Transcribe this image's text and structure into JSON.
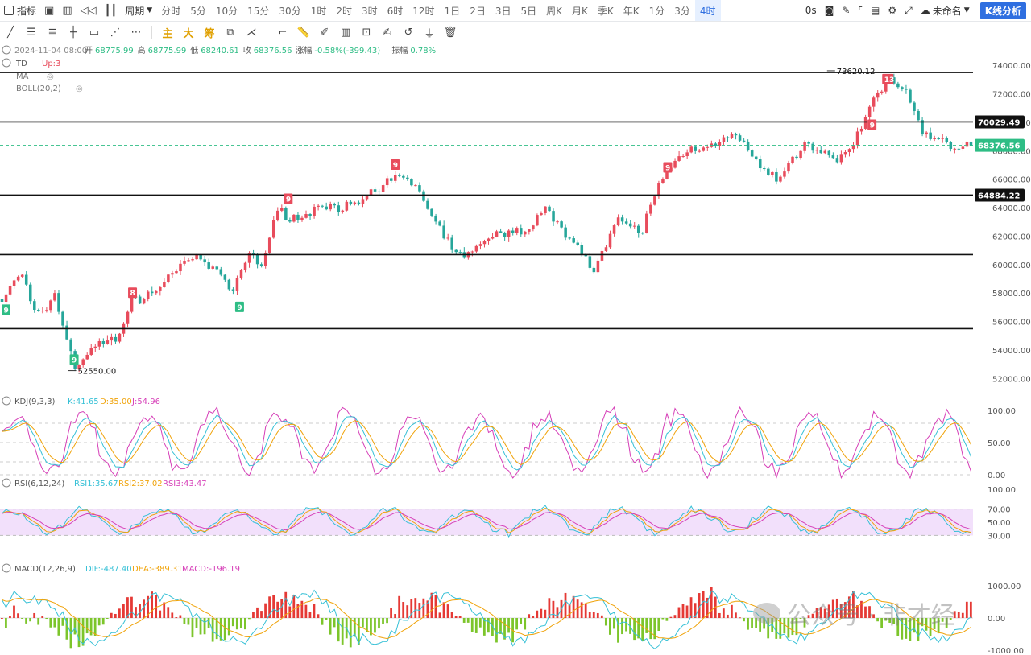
{
  "toolbar": {
    "indicator_label": "指标",
    "period_label": "周期",
    "periods": [
      "分时",
      "5分",
      "10分",
      "15分",
      "30分",
      "1时",
      "2时",
      "3时",
      "6时",
      "12时",
      "1日",
      "2日",
      "3日",
      "5日",
      "周K",
      "月K",
      "季K",
      "年K",
      "1分",
      "3分",
      "4时"
    ],
    "active_period": "4时",
    "countdown": "0s",
    "layout_name": "未命名",
    "kline_button": "K线分析"
  },
  "drawing_tools": {
    "main_label": "主",
    "big_label": "大",
    "chip_label": "筹"
  },
  "ohlc": {
    "datetime": "2024-11-04 08:00",
    "open_label": "开",
    "open": "68775.99",
    "high_label": "高",
    "high": "68775.99",
    "low_label": "低",
    "low": "68240.61",
    "close_label": "收",
    "close": "68376.56",
    "change_label": "涨幅",
    "change": "-0.58%(-399.43)",
    "amp_label": "振幅",
    "amp": "0.78%"
  },
  "overlays": {
    "td_label": "TD",
    "td_value": "Up:3",
    "ma_label": "MA",
    "boll_label": "BOLL(20,2)"
  },
  "kdj": {
    "label": "KDJ(9,3,3)",
    "k": "K:41.65",
    "d": "D:35.00",
    "j": "J:54.96"
  },
  "rsi": {
    "label": "RSI(6,12,24)",
    "r1": "RSI1:35.67",
    "r2": "RSI2:37.02",
    "r3": "RSI3:43.47"
  },
  "macd": {
    "label": "MACD(12,26,9)",
    "dif": "DIF:-487.40",
    "dea": "DEA:-389.31",
    "macd": "MACD:-196.19"
  },
  "watermark": "公众号 · 非才经",
  "colors": {
    "up": "#e84c5c",
    "down": "#26a69a",
    "td_green": "#2ebd85",
    "td_red": "#e84c5c",
    "k_line": "#35c0d6",
    "d_line": "#f0a30a",
    "j_line": "#d63fb8",
    "macd_up": "#e53935",
    "macd_down": "#7cc52b",
    "rsi_band": "#f2e0fb"
  },
  "chart_data": [
    {
      "type": "candlestick",
      "title": "",
      "ylim": [
        51000,
        75200
      ],
      "y_ticks": [
        52000,
        54000,
        56000,
        58000,
        60000,
        62000,
        64000,
        66000,
        68000,
        70000,
        72000,
        74000
      ],
      "horizontal_lines": [
        73500,
        70029.49,
        64884.22,
        60700,
        55500
      ],
      "price_labels": [
        "70029.49",
        "68376.56",
        "64884.22"
      ],
      "last_price": 68376.56,
      "annotations": [
        {
          "text": "73620.12",
          "x": 0.85,
          "y": 73620
        },
        {
          "text": "52550.00",
          "x": 0.07,
          "y": 52550
        }
      ],
      "td_markers": [
        {
          "text": "9",
          "kind": "down",
          "x": 0.0,
          "y": 56800
        },
        {
          "text": "9",
          "kind": "down",
          "x": 0.07,
          "y": 53300
        },
        {
          "text": "8",
          "kind": "up",
          "x": 0.13,
          "y": 58000
        },
        {
          "text": "9",
          "kind": "down",
          "x": 0.24,
          "y": 57000
        },
        {
          "text": "9",
          "kind": "up",
          "x": 0.29,
          "y": 64600
        },
        {
          "text": "9",
          "kind": "up",
          "x": 0.4,
          "y": 67000
        },
        {
          "text": "9",
          "kind": "up",
          "x": 0.68,
          "y": 66800
        },
        {
          "text": "9",
          "kind": "up",
          "x": 0.89,
          "y": 69800
        },
        {
          "text": "13",
          "kind": "up",
          "x": 0.905,
          "y": 73000
        }
      ],
      "anchors": [
        [
          0.0,
          57500
        ],
        [
          0.02,
          59500
        ],
        [
          0.035,
          56200
        ],
        [
          0.055,
          57800
        ],
        [
          0.075,
          52800
        ],
        [
          0.1,
          54400
        ],
        [
          0.12,
          55000
        ],
        [
          0.135,
          57500
        ],
        [
          0.16,
          58200
        ],
        [
          0.19,
          60500
        ],
        [
          0.21,
          60000
        ],
        [
          0.225,
          59500
        ],
        [
          0.235,
          57800
        ],
        [
          0.255,
          60800
        ],
        [
          0.268,
          60000
        ],
        [
          0.285,
          63800
        ],
        [
          0.31,
          63200
        ],
        [
          0.33,
          64300
        ],
        [
          0.36,
          64000
        ],
        [
          0.39,
          65200
        ],
        [
          0.405,
          66200
        ],
        [
          0.425,
          65700
        ],
        [
          0.44,
          64000
        ],
        [
          0.47,
          60500
        ],
        [
          0.51,
          62000
        ],
        [
          0.54,
          62500
        ],
        [
          0.56,
          63800
        ],
        [
          0.59,
          61800
        ],
        [
          0.61,
          59500
        ],
        [
          0.635,
          63000
        ],
        [
          0.66,
          62300
        ],
        [
          0.68,
          66000
        ],
        [
          0.705,
          68000
        ],
        [
          0.73,
          68500
        ],
        [
          0.76,
          69000
        ],
        [
          0.78,
          67000
        ],
        [
          0.8,
          65800
        ],
        [
          0.83,
          68700
        ],
        [
          0.855,
          67300
        ],
        [
          0.88,
          68500
        ],
        [
          0.9,
          71800
        ],
        [
          0.915,
          73000
        ],
        [
          0.935,
          72000
        ],
        [
          0.95,
          69300
        ],
        [
          0.975,
          68500
        ],
        [
          1.0,
          68376
        ]
      ]
    },
    {
      "type": "line",
      "title": "KDJ(9,3,3)",
      "ylim": [
        0,
        100
      ],
      "y_ticks": [
        0,
        50,
        100
      ],
      "series": [
        {
          "name": "K",
          "last": 41.65
        },
        {
          "name": "D",
          "last": 35.0
        },
        {
          "name": "J",
          "last": 54.96
        }
      ]
    },
    {
      "type": "line",
      "title": "RSI(6,12,24)",
      "ylim": [
        0,
        100
      ],
      "y_ticks": [
        30,
        50,
        70,
        100
      ],
      "band": [
        30,
        70
      ],
      "series": [
        {
          "name": "RSI1",
          "last": 35.67
        },
        {
          "name": "RSI2",
          "last": 37.02
        },
        {
          "name": "RSI3",
          "last": 43.47
        }
      ]
    },
    {
      "type": "bar",
      "title": "MACD(12,26,9)",
      "ylim": [
        -1000,
        1000
      ],
      "y_ticks": [
        -1000,
        0,
        1000
      ],
      "series": [
        {
          "name": "DIF",
          "last": -487.4
        },
        {
          "name": "DEA",
          "last": -389.31
        },
        {
          "name": "MACD",
          "last": -196.19
        }
      ]
    }
  ]
}
